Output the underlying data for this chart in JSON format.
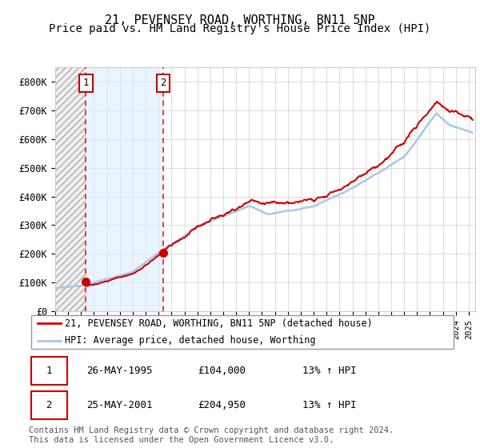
{
  "title": "21, PEVENSEY ROAD, WORTHING, BN11 5NP",
  "subtitle": "Price paid vs. HM Land Registry's House Price Index (HPI)",
  "ylim": [
    0,
    850000
  ],
  "yticks": [
    0,
    100000,
    200000,
    300000,
    400000,
    500000,
    600000,
    700000,
    800000
  ],
  "ytick_labels": [
    "£0",
    "£100K",
    "£200K",
    "£300K",
    "£400K",
    "£500K",
    "£600K",
    "£700K",
    "£800K"
  ],
  "background_color": "#ffffff",
  "hpi_line_color": "#a8c8e8",
  "price_line_color": "#cc0000",
  "marker1_date": 1995.38,
  "marker2_date": 2001.38,
  "purchase1_price": 104000,
  "purchase2_price": 204950,
  "label1": "1",
  "label2": "2",
  "legend_line1": "21, PEVENSEY ROAD, WORTHING, BN11 5NP (detached house)",
  "legend_line2": "HPI: Average price, detached house, Worthing",
  "table_row1": [
    "1",
    "26-MAY-1995",
    "£104,000",
    "13% ↑ HPI"
  ],
  "table_row2": [
    "2",
    "25-MAY-2001",
    "£204,950",
    "13% ↑ HPI"
  ],
  "footnote": "Contains HM Land Registry data © Crown copyright and database right 2024.\nThis data is licensed under the Open Government Licence v3.0.",
  "title_fontsize": 11,
  "subtitle_fontsize": 10,
  "xmin": 1993,
  "xmax": 2025.5
}
